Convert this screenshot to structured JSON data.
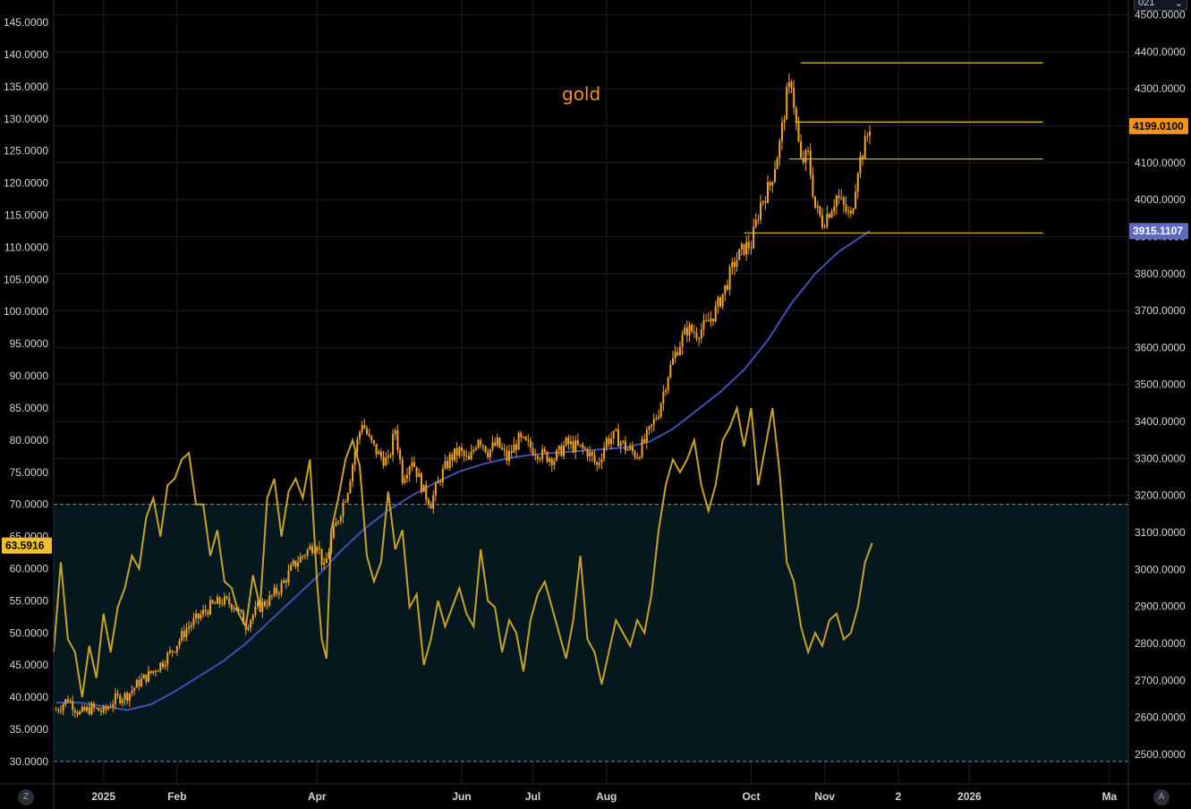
{
  "chart_data": {
    "type": "candlestick",
    "title": "gold",
    "colors": {
      "background": "#000000",
      "candle": "#f5a623",
      "moving_average": "#3f51b5",
      "oscillator": "#c9a227",
      "levels": "#e6c229",
      "oversold_zone": "#04181d",
      "grid": "#1a1d24",
      "price_tag": "#f7931a",
      "ma_tag": "#5c6bc0",
      "osc_tag": "#f0c02a"
    },
    "price_axis": {
      "side": "right",
      "range": [
        2420,
        4540
      ],
      "ticks": [
        2500,
        2600,
        2700,
        2800,
        2900,
        3000,
        3100,
        3200,
        3300,
        3400,
        3500,
        3600,
        3700,
        3800,
        3900,
        4000,
        4100,
        4200,
        4300,
        4400,
        4500
      ],
      "tick_labels": [
        "2500.0000",
        "2600.0000",
        "2700.0000",
        "2800.0000",
        "2900.0000",
        "3000.0000",
        "3100.0000",
        "3200.0000",
        "3300.0000",
        "3400.0000",
        "3500.0000",
        "3600.0000",
        "3700.0000",
        "3800.0000",
        "3900.0000",
        "4000.0000",
        "4100.0000",
        "4200.0000",
        "4300.0000",
        "4400.0000",
        "4500.0000"
      ],
      "last_price_label": "4199.0100",
      "last_price": 4199.01,
      "ma_label": "3915.1107",
      "ma_value": 3915.11
    },
    "oscillator_axis": {
      "side": "left",
      "range": [
        26.5,
        148.5
      ],
      "ticks": [
        30,
        35,
        40,
        45,
        50,
        55,
        60,
        65,
        70,
        75,
        80,
        85,
        90,
        95,
        100,
        105,
        110,
        115,
        120,
        125,
        130,
        135,
        140,
        145
      ],
      "tick_labels": [
        "30.0000",
        "35.0000",
        "40.0000",
        "45.0000",
        "50.0000",
        "55.0000",
        "60.0000",
        "65.0000",
        "70.0000",
        "75.0000",
        "80.0000",
        "85.0000",
        "90.0000",
        "95.0000",
        "100.0000",
        "105.0000",
        "110.0000",
        "115.0000",
        "120.0000",
        "125.0000",
        "130.0000",
        "135.0000",
        "140.0000",
        "145.0000"
      ],
      "current_label": "63.5916",
      "current_value": 63.59,
      "upper_band": 70,
      "lower_band": 30
    },
    "time_axis": {
      "labels": [
        "2025",
        "Feb",
        "Apr",
        "Jun",
        "Jul",
        "Aug",
        "Oct",
        "Nov",
        "2",
        "2026",
        "Ma"
      ],
      "label_days": [
        0,
        31,
        90,
        151,
        181,
        212,
        273,
        304,
        335,
        365,
        424
      ],
      "range_days": [
        -21,
        432
      ]
    },
    "price_series_points": [
      [
        -20,
        2620
      ],
      [
        -15,
        2650
      ],
      [
        -10,
        2610
      ],
      [
        -5,
        2625
      ],
      [
        0,
        2615
      ],
      [
        5,
        2650
      ],
      [
        10,
        2660
      ],
      [
        15,
        2695
      ],
      [
        20,
        2720
      ],
      [
        25,
        2750
      ],
      [
        30,
        2790
      ],
      [
        35,
        2840
      ],
      [
        40,
        2870
      ],
      [
        45,
        2900
      ],
      [
        50,
        2915
      ],
      [
        55,
        2905
      ],
      [
        60,
        2850
      ],
      [
        65,
        2895
      ],
      [
        70,
        2920
      ],
      [
        75,
        2955
      ],
      [
        80,
        3010
      ],
      [
        85,
        3045
      ],
      [
        90,
        3075
      ],
      [
        93,
        3000
      ],
      [
        96,
        3080
      ],
      [
        100,
        3160
      ],
      [
        103,
        3220
      ],
      [
        106,
        3320
      ],
      [
        109,
        3400
      ],
      [
        112,
        3350
      ],
      [
        116,
        3310
      ],
      [
        120,
        3290
      ],
      [
        123,
        3380
      ],
      [
        126,
        3250
      ],
      [
        130,
        3300
      ],
      [
        135,
        3210
      ],
      [
        138,
        3180
      ],
      [
        142,
        3250
      ],
      [
        146,
        3300
      ],
      [
        150,
        3320
      ],
      [
        154,
        3290
      ],
      [
        158,
        3360
      ],
      [
        162,
        3320
      ],
      [
        166,
        3340
      ],
      [
        170,
        3300
      ],
      [
        175,
        3350
      ],
      [
        180,
        3330
      ],
      [
        185,
        3310
      ],
      [
        190,
        3300
      ],
      [
        195,
        3340
      ],
      [
        200,
        3330
      ],
      [
        204,
        3320
      ],
      [
        208,
        3280
      ],
      [
        212,
        3350
      ],
      [
        216,
        3360
      ],
      [
        220,
        3330
      ],
      [
        225,
        3310
      ],
      [
        230,
        3370
      ],
      [
        234,
        3430
      ],
      [
        238,
        3530
      ],
      [
        242,
        3600
      ],
      [
        246,
        3650
      ],
      [
        250,
        3640
      ],
      [
        254,
        3660
      ],
      [
        258,
        3700
      ],
      [
        262,
        3760
      ],
      [
        266,
        3830
      ],
      [
        270,
        3870
      ],
      [
        273,
        3880
      ],
      [
        277,
        3990
      ],
      [
        281,
        4040
      ],
      [
        285,
        4150
      ],
      [
        288,
        4280
      ],
      [
        290,
        4320
      ],
      [
        292,
        4200
      ],
      [
        294,
        4100
      ],
      [
        297,
        4120
      ],
      [
        300,
        3980
      ],
      [
        303,
        3940
      ],
      [
        306,
        3970
      ],
      [
        309,
        4010
      ],
      [
        312,
        3980
      ],
      [
        315,
        3950
      ],
      [
        318,
        4090
      ],
      [
        321,
        4150
      ],
      [
        323,
        4199
      ]
    ],
    "moving_average_points": [
      [
        -20,
        2640
      ],
      [
        -10,
        2640
      ],
      [
        0,
        2630
      ],
      [
        10,
        2620
      ],
      [
        20,
        2635
      ],
      [
        30,
        2670
      ],
      [
        40,
        2710
      ],
      [
        50,
        2750
      ],
      [
        60,
        2800
      ],
      [
        70,
        2860
      ],
      [
        80,
        2920
      ],
      [
        90,
        2980
      ],
      [
        100,
        3050
      ],
      [
        110,
        3110
      ],
      [
        120,
        3160
      ],
      [
        130,
        3200
      ],
      [
        140,
        3235
      ],
      [
        150,
        3265
      ],
      [
        160,
        3285
      ],
      [
        170,
        3300
      ],
      [
        180,
        3310
      ],
      [
        190,
        3315
      ],
      [
        200,
        3320
      ],
      [
        210,
        3325
      ],
      [
        220,
        3330
      ],
      [
        230,
        3345
      ],
      [
        240,
        3380
      ],
      [
        250,
        3430
      ],
      [
        260,
        3480
      ],
      [
        270,
        3540
      ],
      [
        280,
        3620
      ],
      [
        290,
        3720
      ],
      [
        300,
        3800
      ],
      [
        310,
        3860
      ],
      [
        323,
        3915
      ]
    ],
    "oscillator_points": [
      [
        -21,
        47
      ],
      [
        -18,
        61
      ],
      [
        -15,
        49
      ],
      [
        -12,
        47
      ],
      [
        -9,
        40
      ],
      [
        -6,
        48
      ],
      [
        -3,
        43
      ],
      [
        0,
        53
      ],
      [
        3,
        47
      ],
      [
        6,
        54
      ],
      [
        9,
        57
      ],
      [
        12,
        62
      ],
      [
        15,
        60
      ],
      [
        18,
        68
      ],
      [
        21,
        71
      ],
      [
        24,
        65
      ],
      [
        27,
        73
      ],
      [
        30,
        74
      ],
      [
        33,
        77
      ],
      [
        36,
        78
      ],
      [
        39,
        70
      ],
      [
        42,
        70
      ],
      [
        45,
        62
      ],
      [
        48,
        66
      ],
      [
        51,
        58
      ],
      [
        54,
        57
      ],
      [
        57,
        53
      ],
      [
        60,
        51
      ],
      [
        63,
        59
      ],
      [
        66,
        54
      ],
      [
        69,
        71
      ],
      [
        72,
        74
      ],
      [
        75,
        65
      ],
      [
        78,
        72
      ],
      [
        81,
        74
      ],
      [
        84,
        71
      ],
      [
        87,
        77
      ],
      [
        90,
        58
      ],
      [
        92,
        49
      ],
      [
        94,
        46
      ],
      [
        96,
        66
      ],
      [
        99,
        71
      ],
      [
        102,
        77
      ],
      [
        105,
        80
      ],
      [
        108,
        76
      ],
      [
        111,
        62
      ],
      [
        114,
        58
      ],
      [
        117,
        61
      ],
      [
        120,
        72
      ],
      [
        123,
        63
      ],
      [
        126,
        66
      ],
      [
        129,
        54
      ],
      [
        132,
        56
      ],
      [
        135,
        45
      ],
      [
        138,
        49
      ],
      [
        141,
        55
      ],
      [
        144,
        51
      ],
      [
        147,
        54
      ],
      [
        150,
        57
      ],
      [
        153,
        53
      ],
      [
        156,
        51
      ],
      [
        159,
        63
      ],
      [
        162,
        55
      ],
      [
        165,
        54
      ],
      [
        168,
        47
      ],
      [
        171,
        52
      ],
      [
        174,
        50
      ],
      [
        177,
        44
      ],
      [
        180,
        52
      ],
      [
        183,
        56
      ],
      [
        186,
        58
      ],
      [
        189,
        54
      ],
      [
        192,
        50
      ],
      [
        195,
        46
      ],
      [
        198,
        52
      ],
      [
        201,
        62
      ],
      [
        204,
        49
      ],
      [
        207,
        47
      ],
      [
        210,
        42
      ],
      [
        213,
        47
      ],
      [
        216,
        52
      ],
      [
        219,
        50
      ],
      [
        222,
        48
      ],
      [
        225,
        52
      ],
      [
        228,
        50
      ],
      [
        231,
        56
      ],
      [
        234,
        66
      ],
      [
        237,
        73
      ],
      [
        240,
        77
      ],
      [
        243,
        75
      ],
      [
        246,
        77
      ],
      [
        249,
        80
      ],
      [
        252,
        73
      ],
      [
        255,
        69
      ],
      [
        258,
        73
      ],
      [
        261,
        80
      ],
      [
        264,
        82
      ],
      [
        267,
        85
      ],
      [
        270,
        79
      ],
      [
        273,
        85
      ],
      [
        276,
        73
      ],
      [
        279,
        79
      ],
      [
        282,
        85
      ],
      [
        285,
        75
      ],
      [
        288,
        61
      ],
      [
        291,
        58
      ],
      [
        294,
        51
      ],
      [
        297,
        47
      ],
      [
        300,
        50
      ],
      [
        303,
        48
      ],
      [
        306,
        52
      ],
      [
        309,
        53
      ],
      [
        312,
        49
      ],
      [
        315,
        50
      ],
      [
        318,
        54
      ],
      [
        321,
        61
      ],
      [
        324,
        64
      ]
    ],
    "horizontal_levels": [
      {
        "value": 4370,
        "from_day": 294,
        "to_day": 396
      },
      {
        "value": 4210,
        "from_day": 292,
        "to_day": 396
      },
      {
        "value": 4110,
        "from_day": 289,
        "to_day": 396
      },
      {
        "value": 3910,
        "from_day": 270,
        "to_day": 396
      }
    ],
    "interval_label": "021",
    "corner_left_label": "Z",
    "corner_right_label": "A"
  }
}
